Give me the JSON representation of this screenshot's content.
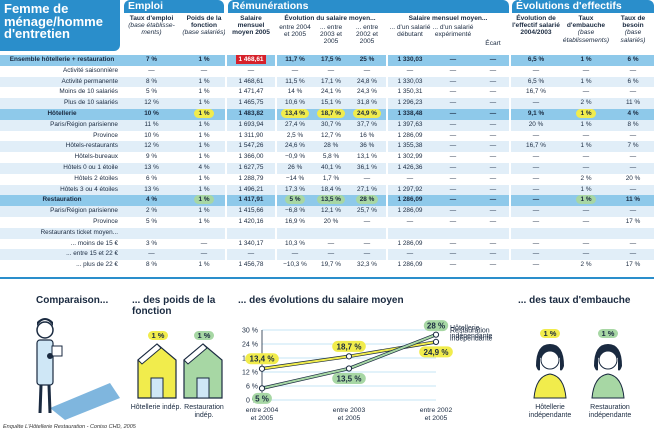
{
  "title": "Femme de ménage/homme d'entretien",
  "sections": {
    "emploi": "Emploi",
    "remunerations": "Rémunérations",
    "evolutions": "Évolutions d'effectifs"
  },
  "headers": {
    "taux_emploi": "Taux d'emploi",
    "taux_emploi_note": "(base établisse- ments)",
    "poids": "Poids de la fonction",
    "poids_note": "(base salariés)",
    "salaire_moyen": "Salaire mensuel moyen 2005",
    "evol": "Évolution du salaire moyen...",
    "evol_a": "entre 2004 et 2005",
    "evol_b": "... entre 2003 et 2005",
    "evol_c": "... entre 2002 et 2005",
    "sal_mens": "Salaire mensuel moyen...",
    "sal_deb": "... d'un salarié débutant",
    "sal_exp": "... d'un salarié expérimenté",
    "ecart": "Écart",
    "evo_eff": "Évolution de l'effectif salarié 2004/2003",
    "taux_emb": "Taux d'embauche",
    "taux_emb_note": "(base établissements)",
    "taux_bes": "Taux de besoin",
    "taux_bes_note": "(base salariés)"
  },
  "rows": [
    {
      "label": "Ensemble hôtellerie + restauration",
      "v": [
        "7 %",
        "1 %",
        "1 468,61",
        "11,7 %",
        "17,5 %",
        "25 %",
        "1 330,03",
        "—",
        "—",
        "6,5 %",
        "1 %",
        "6 %"
      ]
    },
    {
      "label": "Activité saisonnière",
      "v": [
        "—",
        "—",
        "—",
        "—",
        "—",
        "—",
        "—",
        "—",
        "—",
        "—",
        "—",
        "—"
      ]
    },
    {
      "label": "Activité permanente",
      "v": [
        "8 %",
        "1 %",
        "1 468,61",
        "11,5 %",
        "17,1 %",
        "24,8 %",
        "1 330,03",
        "—",
        "—",
        "6,5 %",
        "1 %",
        "6 %"
      ]
    },
    {
      "label": "Moins de 10 salariés",
      "v": [
        "5 %",
        "1 %",
        "1 471,47",
        "14 %",
        "24,1 %",
        "24,3 %",
        "1 350,31",
        "—",
        "—",
        "16,7 %",
        "—",
        "—"
      ]
    },
    {
      "label": "Plus de 10 salariés",
      "v": [
        "12 %",
        "1 %",
        "1 465,75",
        "10,6 %",
        "15,1 %",
        "31,8 %",
        "1 296,23",
        "—",
        "—",
        "—",
        "2 %",
        "11 %"
      ]
    },
    {
      "label": "Hôtellerie",
      "v": [
        "10 %",
        "1 %",
        "1 483,82",
        "13,4 %",
        "18,7 %",
        "24,9 %",
        "1 338,48",
        "—",
        "—",
        "9,1 %",
        "1 %",
        "4 %"
      ]
    },
    {
      "label": "Paris/Région parisienne",
      "v": [
        "11 %",
        "1 %",
        "1 693,94",
        "27,4 %",
        "30,7 %",
        "37,7 %",
        "1 397,63",
        "—",
        "—",
        "20 %",
        "1 %",
        "8 %"
      ]
    },
    {
      "label": "Province",
      "v": [
        "10 %",
        "1 %",
        "1 311,90",
        "2,5 %",
        "12,7 %",
        "16 %",
        "1 286,09",
        "—",
        "—",
        "—",
        "—",
        "—"
      ]
    },
    {
      "label": "Hôtels-restaurants",
      "v": [
        "12 %",
        "1 %",
        "1 547,26",
        "24,6 %",
        "28 %",
        "36 %",
        "1 355,38",
        "—",
        "—",
        "16,7 %",
        "1 %",
        "7 %"
      ]
    },
    {
      "label": "Hôtels-bureaux",
      "v": [
        "9 %",
        "1 %",
        "1 366,00",
        "−0,9 %",
        "5,8 %",
        "13,1 %",
        "1 302,99",
        "—",
        "—",
        "—",
        "—",
        "—"
      ]
    },
    {
      "label": "Hôtels 0 ou 1 étoile",
      "v": [
        "13 %",
        "4 %",
        "1 627,75",
        "26 %",
        "40,1 %",
        "36,1 %",
        "1 426,36",
        "—",
        "—",
        "—",
        "—",
        "—"
      ]
    },
    {
      "label": "Hôtels 2 étoiles",
      "v": [
        "6 %",
        "1 %",
        "1 288,79",
        "−14 %",
        "1,7 %",
        "—",
        "—",
        "—",
        "—",
        "—",
        "2 %",
        "20 %"
      ]
    },
    {
      "label": "Hôtels 3 ou 4 étoiles",
      "v": [
        "13 %",
        "1 %",
        "1 496,21",
        "17,3 %",
        "18,4 %",
        "27,1 %",
        "1 297,92",
        "—",
        "—",
        "—",
        "1 %",
        "—"
      ]
    },
    {
      "label": "Restauration",
      "v": [
        "4 %",
        "1 %",
        "1 417,91",
        "5 %",
        "13,5 %",
        "28 %",
        "1 286,09",
        "—",
        "—",
        "—",
        "1 %",
        "11 %"
      ]
    },
    {
      "label": "Paris/Région parisienne",
      "v": [
        "2 %",
        "1 %",
        "1 415,66",
        "−6,8 %",
        "12,1 %",
        "25,7 %",
        "1 286,09",
        "—",
        "—",
        "—",
        "—",
        "—"
      ]
    },
    {
      "label": "Province",
      "v": [
        "5 %",
        "1 %",
        "1 420,16",
        "16,9 %",
        "20 %",
        "—",
        "—",
        "—",
        "—",
        "—",
        "—",
        "17 %"
      ]
    },
    {
      "label": "Restaurants ticket moyen...",
      "v": [
        "",
        "",
        "",
        "",
        "",
        "",
        "",
        "",
        "",
        "",
        "",
        ""
      ]
    },
    {
      "label": "... moins de 15 €",
      "v": [
        "3 %",
        "—",
        "1 340,17",
        "10,3 %",
        "—",
        "—",
        "1 286,09",
        "—",
        "—",
        "—",
        "—",
        "—"
      ]
    },
    {
      "label": "... entre 15 et 22 €",
      "v": [
        "—",
        "—",
        "—",
        "—",
        "—",
        "—",
        "—",
        "—",
        "—",
        "—",
        "—",
        "—"
      ]
    },
    {
      "label": "... plus de 22 €",
      "v": [
        "8 %",
        "1 %",
        "1 456,78",
        "−10,3 %",
        "19,7 %",
        "32,3 %",
        "1 286,09",
        "—",
        "—",
        "—",
        "2 %",
        "17 %"
      ]
    }
  ],
  "bottom": {
    "comparaison": "Comparaison...",
    "poids_title": "... des poids de la fonction",
    "evol_title": "... des évolutions du salaire moyen",
    "emb_title": "... des taux d'embauche",
    "house1_val": "1 %",
    "house1_label": "Hôtellerie indép.",
    "house2_val": "1 %",
    "house2_label": "Restauration indép.",
    "person1_val": "1 %",
    "person1_label": "Hôtellerie indépendante",
    "person2_val": "1 %",
    "person2_label": "Restauration indépendante",
    "source": "Enquête L'Hôtellerie Restauration - Coniso CHD, 2005"
  },
  "chart_data": {
    "type": "line",
    "categories": [
      "entre 2004 et 2005",
      "entre 2003 et 2005",
      "entre 2002 et 2005"
    ],
    "series": [
      {
        "name": "Hôtellerie indépendante",
        "values": [
          13.4,
          18.7,
          24.9
        ],
        "color": "#f1ec4c"
      },
      {
        "name": "Restauration indépendante",
        "values": [
          5,
          13.5,
          28
        ],
        "color": "#a7d7a4"
      }
    ],
    "point_labels": [
      [
        "13,4 %",
        "18,7 %",
        "24,9 %"
      ],
      [
        "5 %",
        "13,5 %",
        "28 %"
      ]
    ],
    "yticks": [
      "0 %",
      "6 %",
      "12 %",
      "18 %",
      "24 %",
      "30 %"
    ],
    "ylim": [
      0,
      30
    ],
    "series_labels": [
      "Hôtellerie indépendante",
      "Restauration indépendante"
    ]
  },
  "colors": {
    "accent": "#2a8ecb",
    "highlight": "#8ec9ea",
    "yellow": "#f1ec4c",
    "green": "#a7d7a4",
    "red": "#d6212b"
  }
}
